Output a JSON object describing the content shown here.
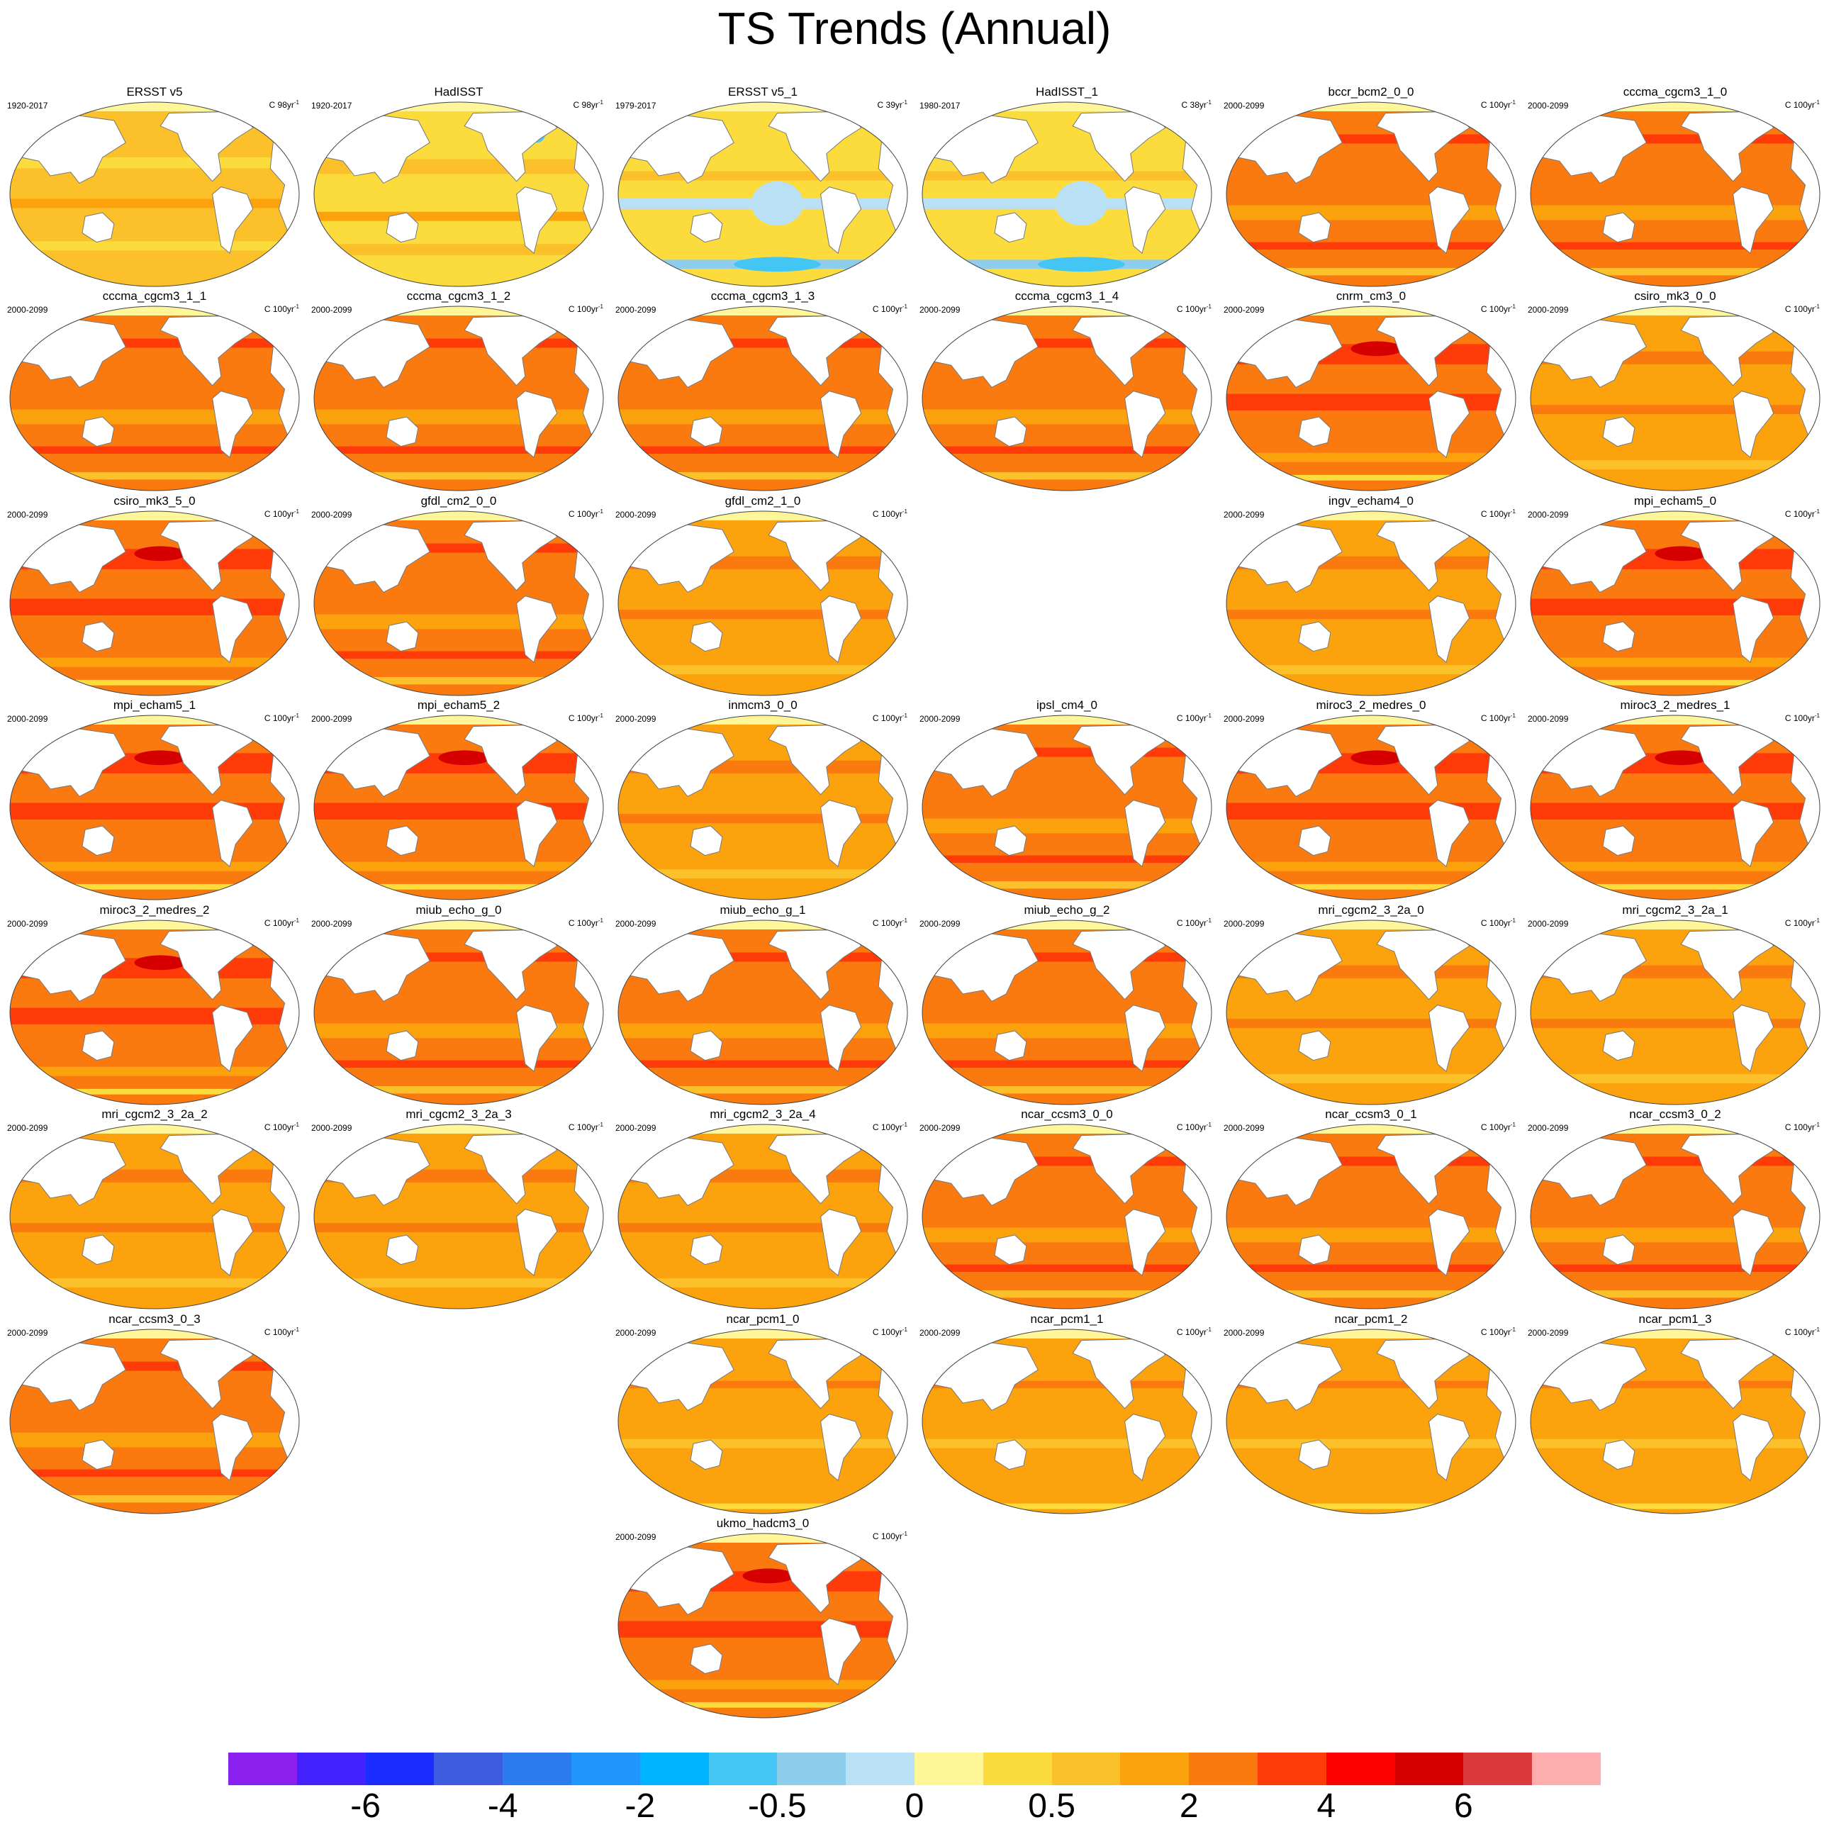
{
  "title": "TS Trends (Annual)",
  "panels": [
    {
      "name": "ERSST v5",
      "period": "1920-2017",
      "units": "C 98yr",
      "exp": "-1",
      "theme": "obs"
    },
    {
      "name": "HadISST",
      "period": "1920-2017",
      "units": "C 98yr",
      "exp": "-1",
      "theme": "obs2"
    },
    {
      "name": "ERSST v5_1",
      "period": "1979-2017",
      "units": "C 39yr",
      "exp": "-1",
      "theme": "obsr"
    },
    {
      "name": "HadISST_1",
      "period": "1980-2017",
      "units": "C 38yr",
      "exp": "-1",
      "theme": "obsr"
    },
    {
      "name": "bccr_bcm2_0_0",
      "period": "2000-2099",
      "units": "C 100yr",
      "exp": "-1",
      "theme": "warm"
    },
    {
      "name": "cccma_cgcm3_1_0",
      "period": "2000-2099",
      "units": "C 100yr",
      "exp": "-1",
      "theme": "warm"
    },
    {
      "name": "cccma_cgcm3_1_1",
      "period": "2000-2099",
      "units": "C 100yr",
      "exp": "-1",
      "theme": "warm"
    },
    {
      "name": "cccma_cgcm3_1_2",
      "period": "2000-2099",
      "units": "C 100yr",
      "exp": "-1",
      "theme": "warm"
    },
    {
      "name": "cccma_cgcm3_1_3",
      "period": "2000-2099",
      "units": "C 100yr",
      "exp": "-1",
      "theme": "warm"
    },
    {
      "name": "cccma_cgcm3_1_4",
      "period": "2000-2099",
      "units": "C 100yr",
      "exp": "-1",
      "theme": "warm"
    },
    {
      "name": "cnrm_cm3_0",
      "period": "2000-2099",
      "units": "C 100yr",
      "exp": "-1",
      "theme": "hot"
    },
    {
      "name": "csiro_mk3_0_0",
      "period": "2000-2099",
      "units": "C 100yr",
      "exp": "-1",
      "theme": "mild"
    },
    {
      "name": "csiro_mk3_5_0",
      "period": "2000-2099",
      "units": "C 100yr",
      "exp": "-1",
      "theme": "hot"
    },
    {
      "name": "gfdl_cm2_0_0",
      "period": "2000-2099",
      "units": "C 100yr",
      "exp": "-1",
      "theme": "warm"
    },
    {
      "name": "gfdl_cm2_1_0",
      "period": "2000-2099",
      "units": "C 100yr",
      "exp": "-1",
      "theme": "mild"
    },
    {
      "name": "ingv_echam4_0",
      "period": "2000-2099",
      "units": "C 100yr",
      "exp": "-1",
      "theme": "mild"
    },
    {
      "name": "mpi_echam5_0",
      "period": "2000-2099",
      "units": "C 100yr",
      "exp": "-1",
      "theme": "hot"
    },
    {
      "name": "mpi_echam5_1",
      "period": "2000-2099",
      "units": "C 100yr",
      "exp": "-1",
      "theme": "hot"
    },
    {
      "name": "mpi_echam5_2",
      "period": "2000-2099",
      "units": "C 100yr",
      "exp": "-1",
      "theme": "hot"
    },
    {
      "name": "inmcm3_0_0",
      "period": "2000-2099",
      "units": "C 100yr",
      "exp": "-1",
      "theme": "mild"
    },
    {
      "name": "ipsl_cm4_0",
      "period": "2000-2099",
      "units": "C 100yr",
      "exp": "-1",
      "theme": "warm"
    },
    {
      "name": "miroc3_2_medres_0",
      "period": "2000-2099",
      "units": "C 100yr",
      "exp": "-1",
      "theme": "hot"
    },
    {
      "name": "miroc3_2_medres_1",
      "period": "2000-2099",
      "units": "C 100yr",
      "exp": "-1",
      "theme": "hot"
    },
    {
      "name": "miroc3_2_medres_2",
      "period": "2000-2099",
      "units": "C 100yr",
      "exp": "-1",
      "theme": "hot"
    },
    {
      "name": "miub_echo_g_0",
      "period": "2000-2099",
      "units": "C 100yr",
      "exp": "-1",
      "theme": "warm"
    },
    {
      "name": "miub_echo_g_1",
      "period": "2000-2099",
      "units": "C 100yr",
      "exp": "-1",
      "theme": "warm"
    },
    {
      "name": "miub_echo_g_2",
      "period": "2000-2099",
      "units": "C 100yr",
      "exp": "-1",
      "theme": "warm"
    },
    {
      "name": "mri_cgcm2_3_2a_0",
      "period": "2000-2099",
      "units": "C 100yr",
      "exp": "-1",
      "theme": "mild"
    },
    {
      "name": "mri_cgcm2_3_2a_1",
      "period": "2000-2099",
      "units": "C 100yr",
      "exp": "-1",
      "theme": "mild"
    },
    {
      "name": "mri_cgcm2_3_2a_2",
      "period": "2000-2099",
      "units": "C 100yr",
      "exp": "-1",
      "theme": "mild"
    },
    {
      "name": "mri_cgcm2_3_2a_3",
      "period": "2000-2099",
      "units": "C 100yr",
      "exp": "-1",
      "theme": "mild"
    },
    {
      "name": "mri_cgcm2_3_2a_4",
      "period": "2000-2099",
      "units": "C 100yr",
      "exp": "-1",
      "theme": "mild"
    },
    {
      "name": "ncar_ccsm3_0_0",
      "period": "2000-2099",
      "units": "C 100yr",
      "exp": "-1",
      "theme": "warm"
    },
    {
      "name": "ncar_ccsm3_0_1",
      "period": "2000-2099",
      "units": "C 100yr",
      "exp": "-1",
      "theme": "warm"
    },
    {
      "name": "ncar_ccsm3_0_2",
      "period": "2000-2099",
      "units": "C 100yr",
      "exp": "-1",
      "theme": "warm"
    },
    {
      "name": "ncar_ccsm3_0_3",
      "period": "2000-2099",
      "units": "C 100yr",
      "exp": "-1",
      "theme": "warm"
    },
    {
      "name": "ncar_pcm1_0",
      "period": "2000-2099",
      "units": "C 100yr",
      "exp": "-1",
      "theme": "pcm"
    },
    {
      "name": "ncar_pcm1_1",
      "period": "2000-2099",
      "units": "C 100yr",
      "exp": "-1",
      "theme": "pcm"
    },
    {
      "name": "ncar_pcm1_2",
      "period": "2000-2099",
      "units": "C 100yr",
      "exp": "-1",
      "theme": "pcm"
    },
    {
      "name": "ncar_pcm1_3",
      "period": "2000-2099",
      "units": "C 100yr",
      "exp": "-1",
      "theme": "pcm"
    },
    {
      "name": "ukmo_hadcm3_0",
      "period": "2000-2099",
      "units": "C 100yr",
      "exp": "-1",
      "theme": "hot"
    }
  ],
  "colorbar": {
    "colors": [
      "#8b20ee",
      "#4422ff",
      "#1a2cff",
      "#3d5de0",
      "#2c7bef",
      "#1f97ff",
      "#00b4ff",
      "#44c6f4",
      "#8fcdec",
      "#b9e0f5",
      "#fff599",
      "#fcdc3c",
      "#fcc02a",
      "#fca20c",
      "#fb7a10",
      "#ff3c09",
      "#fd0000",
      "#d60000",
      "#db3a3a",
      "#ffaeb0"
    ],
    "labels": [
      "-6",
      "-4",
      "-2",
      "-0.5",
      "0",
      "0.5",
      "2",
      "4",
      "6"
    ]
  }
}
